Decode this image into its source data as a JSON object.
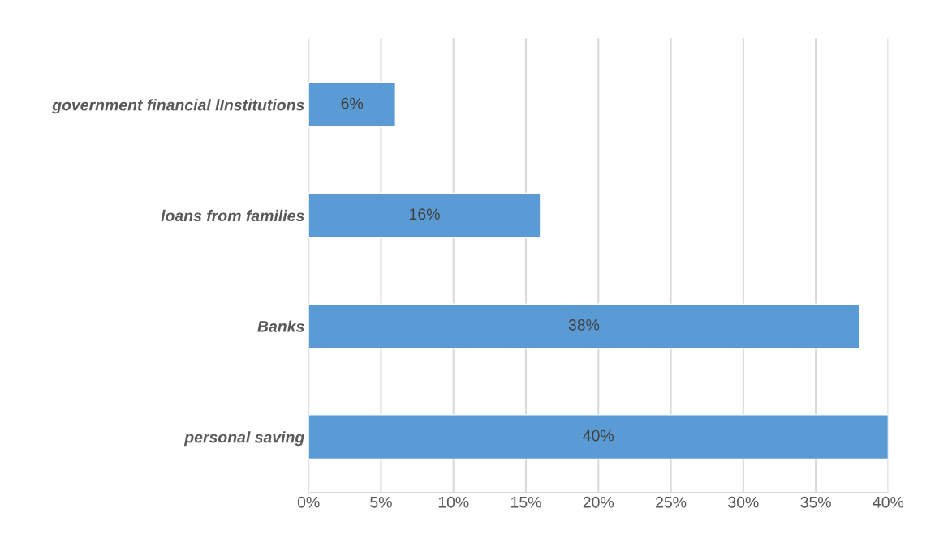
{
  "chart_data": {
    "type": "bar",
    "orientation": "horizontal",
    "categories": [
      "government financial lInstitutions",
      "loans from families",
      "Banks",
      "personal saving"
    ],
    "values": [
      6,
      16,
      38,
      40
    ],
    "value_labels": [
      "6%",
      "16%",
      "38%",
      "40%"
    ],
    "color": "#5b9bd5",
    "xlim": [
      0,
      40
    ],
    "xticks": [
      {
        "value": 0,
        "label": "0%"
      },
      {
        "value": 5,
        "label": "5%"
      },
      {
        "value": 10,
        "label": "10%"
      },
      {
        "value": 15,
        "label": "15%"
      },
      {
        "value": 20,
        "label": "20%"
      },
      {
        "value": 25,
        "label": "25%"
      },
      {
        "value": 30,
        "label": "30%"
      },
      {
        "value": 35,
        "label": "35%"
      },
      {
        "value": 40,
        "label": "40%"
      }
    ],
    "grid": "x"
  }
}
